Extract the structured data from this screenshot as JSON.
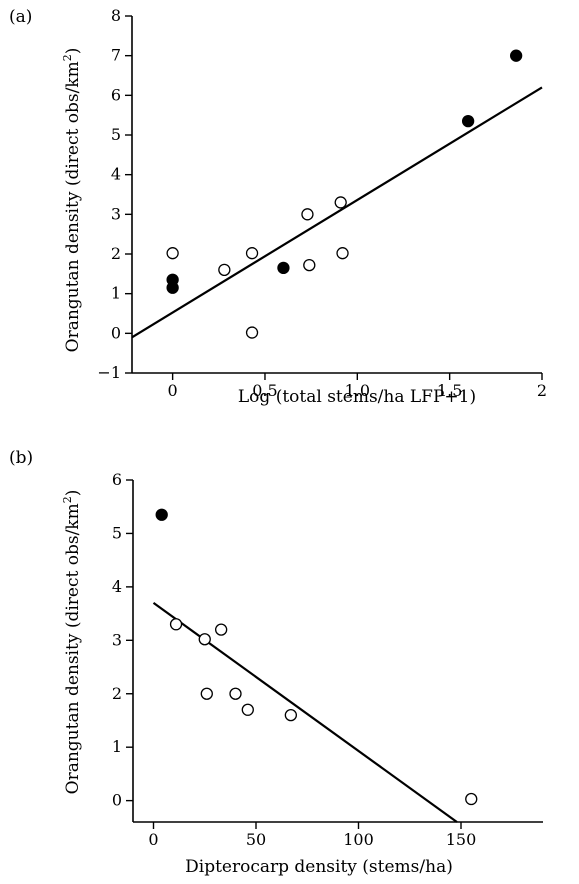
{
  "chart_data": [
    {
      "panel_label": "(a)",
      "type": "scatter",
      "xlabel": "Log (total stems/ha LFP+1)",
      "ylabel_main": "Orangutan density (direct obs/km",
      "ylabel_sup": "2",
      "ylabel_close": ")",
      "xlim": [
        -0.22,
        2.0
      ],
      "ylim": [
        -1,
        8
      ],
      "xticks": [
        0,
        0.5,
        1.0,
        1.5,
        2
      ],
      "xtick_labels": [
        "0",
        "0.5",
        "1.0",
        "1.5",
        "2"
      ],
      "yticks": [
        -1,
        0,
        1,
        2,
        3,
        4,
        5,
        6,
        7,
        8
      ],
      "ytick_labels": [
        "−1",
        "0",
        "1",
        "2",
        "3",
        "4",
        "5",
        "6",
        "7",
        "8"
      ],
      "series": [
        {
          "marker": "filled",
          "points": [
            [
              0,
              1.35
            ],
            [
              0,
              1.15
            ],
            [
              0.6,
              1.65
            ],
            [
              1.6,
              5.35
            ],
            [
              1.86,
              7.0
            ]
          ]
        },
        {
          "marker": "open",
          "points": [
            [
              0,
              2.02
            ],
            [
              0.28,
              1.6
            ],
            [
              0.43,
              2.02
            ],
            [
              0.43,
              0.02
            ],
            [
              0.73,
              3.0
            ],
            [
              0.74,
              1.72
            ],
            [
              0.91,
              3.3
            ],
            [
              0.92,
              2.02
            ]
          ]
        }
      ],
      "fit_line": [
        [
          -0.22,
          -0.1
        ],
        [
          2.0,
          6.2
        ]
      ]
    },
    {
      "panel_label": "(b)",
      "type": "scatter",
      "xlabel": "Dipterocarp density (stems/ha)",
      "ylabel_main": "Orangutan density (direct obs/km",
      "ylabel_sup": "2",
      "ylabel_close": ")",
      "xlim": [
        -10,
        190
      ],
      "ylim": [
        -0.4,
        6
      ],
      "xticks": [
        0,
        50,
        100,
        150
      ],
      "xtick_labels": [
        "0",
        "50",
        "100",
        "150"
      ],
      "yticks": [
        0,
        1,
        2,
        3,
        4,
        5,
        6
      ],
      "ytick_labels": [
        "0",
        "1",
        "2",
        "3",
        "4",
        "5",
        "6"
      ],
      "series": [
        {
          "marker": "filled",
          "points": [
            [
              4,
              5.35
            ]
          ]
        },
        {
          "marker": "open",
          "points": [
            [
              11,
              3.3
            ],
            [
              25,
              3.02
            ],
            [
              26,
              2.0
            ],
            [
              33,
              3.2
            ],
            [
              40,
              2.0
            ],
            [
              46,
              1.7
            ],
            [
              67,
              1.6
            ],
            [
              155,
              0.03
            ]
          ]
        }
      ],
      "fit_line": [
        [
          0,
          3.7
        ],
        [
          148,
          -0.4
        ]
      ]
    }
  ]
}
